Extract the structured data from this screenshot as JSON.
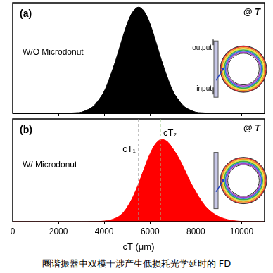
{
  "chart_data": [
    {
      "type": "area",
      "title": "(a)",
      "annotations": [
        "W/O Microdonut",
        "@ T"
      ],
      "inset_labels": [
        "output",
        "input"
      ],
      "x": [
        0,
        1000,
        2000,
        2500,
        2750,
        3000,
        3250,
        3500,
        3750,
        4000,
        4250,
        4500,
        4750,
        5000,
        5250,
        5500,
        5750,
        6000,
        6250,
        6500,
        6750,
        7000,
        7250,
        7500,
        7750,
        8000,
        8250,
        8500,
        9000,
        10000,
        11000
      ],
      "values": [
        0,
        0,
        0,
        0.002,
        0.005,
        0.01,
        0.03,
        0.06,
        0.12,
        0.2,
        0.33,
        0.48,
        0.65,
        0.81,
        0.92,
        0.96,
        0.92,
        0.81,
        0.65,
        0.48,
        0.33,
        0.2,
        0.12,
        0.06,
        0.03,
        0.01,
        0.005,
        0.002,
        0,
        0,
        0
      ],
      "color": "#000000",
      "xlim": [
        0,
        11000
      ],
      "xticks": [
        0,
        2000,
        4000,
        6000,
        8000,
        10000
      ],
      "ylim": [
        0,
        1
      ],
      "tick_labels": false,
      "grid": false
    },
    {
      "type": "area",
      "title": "(b)",
      "annotations": [
        "W/ Microdonut",
        "@ T"
      ],
      "x_label": "cT (μm)",
      "markers": [
        {
          "x": 5500,
          "label": "cT₁"
        },
        {
          "x": 6450,
          "label": "cT₂"
        }
      ],
      "x": [
        0,
        1000,
        2000,
        2500,
        2750,
        3000,
        3250,
        3500,
        3750,
        4000,
        4250,
        4500,
        4750,
        5000,
        5250,
        5500,
        5750,
        6000,
        6250,
        6500,
        6750,
        7000,
        7250,
        7500,
        7750,
        8000,
        8250,
        8500,
        9000,
        10000,
        11000
      ],
      "values": [
        0,
        0,
        0,
        0,
        0,
        0,
        0,
        0.001,
        0.002,
        0.006,
        0.015,
        0.035,
        0.07,
        0.14,
        0.24,
        0.37,
        0.52,
        0.66,
        0.76,
        0.8,
        0.78,
        0.71,
        0.62,
        0.51,
        0.39,
        0.29,
        0.2,
        0.13,
        0.05,
        0.003,
        0
      ],
      "color": "#ff0000",
      "xlim": [
        0,
        11000
      ],
      "xticks": [
        0,
        2000,
        4000,
        6000,
        8000,
        10000
      ],
      "ylim": [
        0,
        1
      ],
      "tick_labels": "x",
      "grid": false
    }
  ],
  "caption": "圈谐振器中双模干涉产生低损耗光学延时的 FD"
}
